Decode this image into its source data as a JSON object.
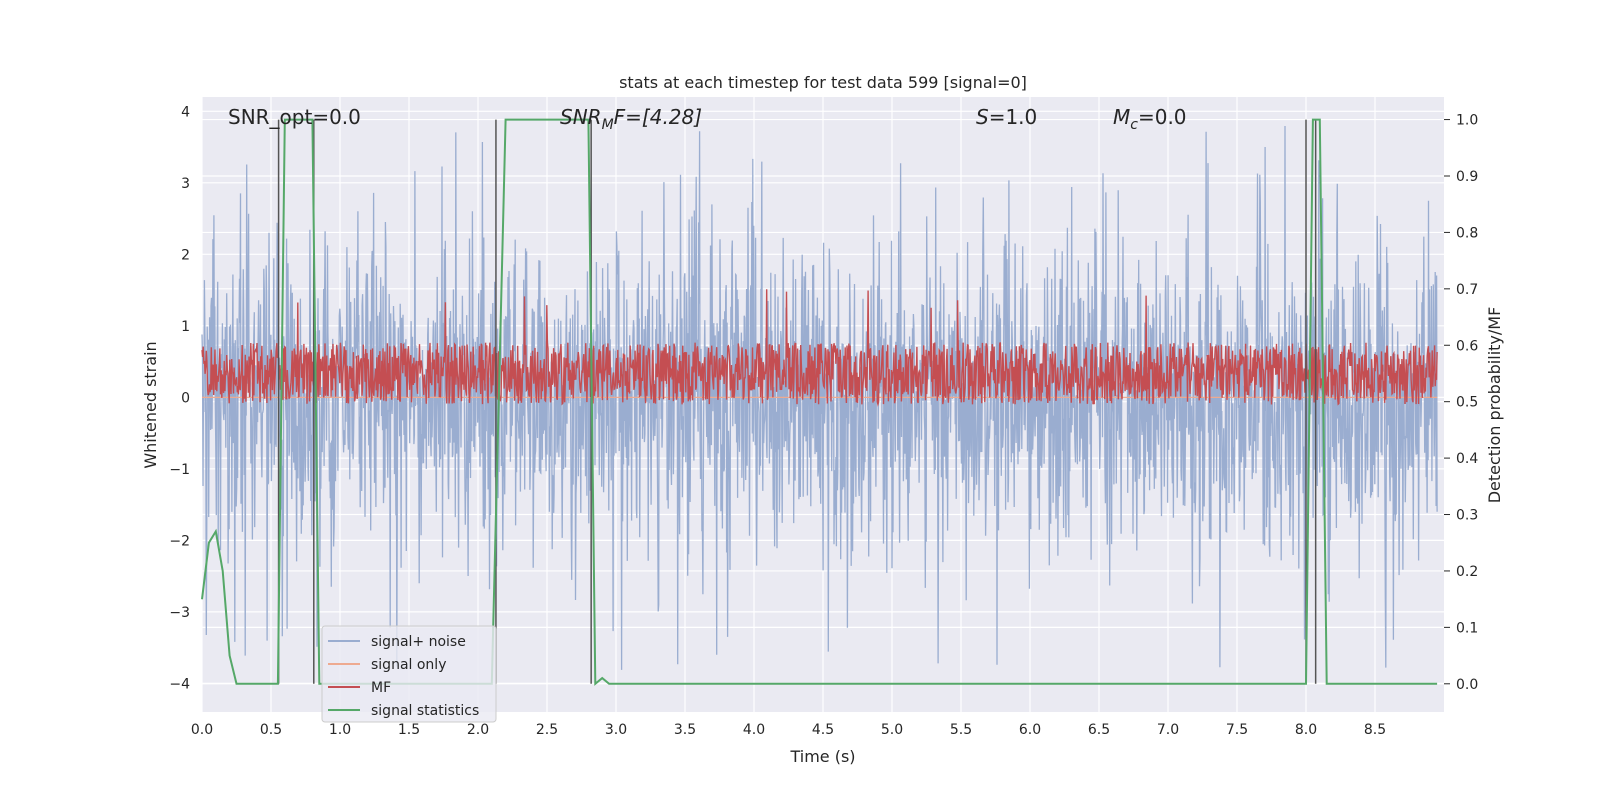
{
  "chart_data": {
    "type": "line",
    "title": "stats at each timestep for test data 599 [signal=0]",
    "xlabel": "Time (s)",
    "ylabel_left": "Whitened strain",
    "ylabel_right": "Detection probability/MF",
    "xlim": [
      0.0,
      9.0
    ],
    "ylim_left": [
      -4.4,
      4.2
    ],
    "ylim_right": [
      -0.05,
      1.04
    ],
    "x_ticks": [
      "0.0",
      "0.5",
      "1.0",
      "1.5",
      "2.0",
      "2.5",
      "3.0",
      "3.5",
      "4.0",
      "4.5",
      "5.0",
      "5.5",
      "6.0",
      "6.5",
      "7.0",
      "7.5",
      "8.0",
      "8.5"
    ],
    "y_ticks_left": [
      "4",
      "3",
      "2",
      "1",
      "0",
      "−1",
      "−2",
      "−3",
      "−4"
    ],
    "y_ticks_right": [
      "1.0",
      "0.9",
      "0.8",
      "0.7",
      "0.6",
      "0.5",
      "0.4",
      "0.3",
      "0.2",
      "0.1",
      "0.0"
    ],
    "grid": true,
    "legend_position": "lower-left",
    "annotations": {
      "snr_opt": "SNR_opt=0.0",
      "snr_mf_sym": "SNR",
      "snr_mf_sub": "M",
      "snr_mf_rest": "F=[4.28]",
      "s_sym": "S",
      "s_rest": "=1.0",
      "mc_sym": "M",
      "mc_sub": "c",
      "mc_rest": "=0.0"
    },
    "series": [
      {
        "name": "signal+ noise",
        "color": "#9aadd0",
        "axis": "left",
        "kind": "noise",
        "amplitude_typical": 1.0,
        "amplitude_peak": 3.9
      },
      {
        "name": "signal only",
        "color": "#eeaa90",
        "axis": "left",
        "kind": "flat",
        "value": 0.0
      },
      {
        "name": "MF",
        "color": "#c44e52",
        "axis": "right",
        "kind": "noise",
        "center": 0.55,
        "spread": 0.05
      },
      {
        "name": "signal statistics",
        "color": "#55a868",
        "axis": "right",
        "kind": "line",
        "x": [
          0.0,
          0.05,
          0.1,
          0.15,
          0.2,
          0.25,
          0.5,
          0.55,
          0.6,
          0.65,
          0.8,
          0.85,
          2.1,
          2.15,
          2.2,
          2.8,
          2.85,
          2.9,
          2.95,
          7.95,
          8.0,
          8.05,
          8.1,
          8.15,
          8.95
        ],
        "y": [
          0.15,
          0.25,
          0.27,
          0.2,
          0.05,
          0.0,
          0.0,
          0.0,
          1.0,
          1.0,
          1.0,
          0.0,
          0.0,
          0.5,
          1.0,
          1.0,
          0.0,
          0.01,
          0.0,
          0.0,
          0.0,
          1.0,
          1.0,
          0.0,
          0.0
        ]
      },
      {
        "name": "",
        "color": "#555555",
        "axis": "right",
        "kind": "vlines",
        "x": [
          0.555,
          0.81,
          2.13,
          2.82,
          8.0,
          8.07
        ],
        "y_top": 1.0,
        "y_bottom": 0.0
      }
    ]
  }
}
